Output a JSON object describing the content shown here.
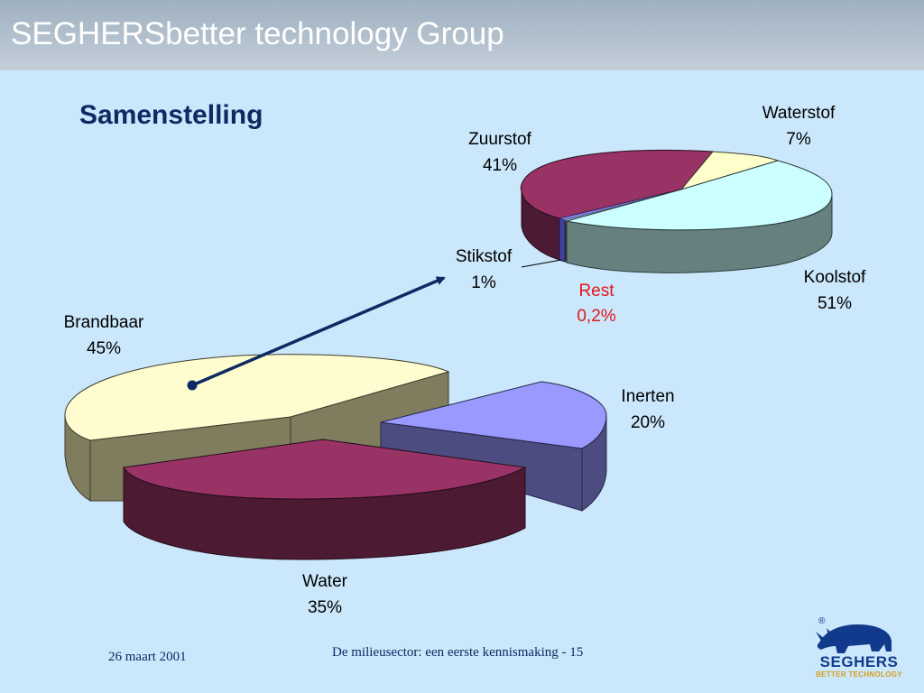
{
  "header": {
    "title": "SEGHERSbetter technology Group"
  },
  "slide": {
    "title": "Samenstelling"
  },
  "footer": {
    "date": "26 maart 2001",
    "text": "De milieusector: een eerste kennismaking -  15"
  },
  "logo": {
    "name": "SEGHERS",
    "tagline": "BETTER TECHNOLOGY",
    "registered": "®"
  },
  "colors": {
    "brandbaar": "#fffdd0",
    "water": "#993366",
    "inerten": "#9999ff",
    "koolstof": "#ccffff",
    "zuurstof": "#993366",
    "waterstof": "#ffffcc",
    "stikstof": "#8080e0",
    "arrow": "#0d2a63",
    "rest_label": "#e01818"
  },
  "chart_data": [
    {
      "type": "pie",
      "title": "",
      "slices": [
        {
          "name": "Brandbaar",
          "value": 45,
          "label": "45%"
        },
        {
          "name": "Water",
          "value": 35,
          "label": "35%"
        },
        {
          "name": "Inerten",
          "value": 20,
          "label": "20%"
        }
      ]
    },
    {
      "type": "pie",
      "title": "",
      "slices": [
        {
          "name": "Waterstof",
          "value": 7,
          "label": "7%"
        },
        {
          "name": "Koolstof",
          "value": 51,
          "label": "51%"
        },
        {
          "name": "Rest",
          "value": 0.2,
          "label": "0,2%"
        },
        {
          "name": "Stikstof",
          "value": 1,
          "label": "1%"
        },
        {
          "name": "Zuurstof",
          "value": 41,
          "label": "41%"
        }
      ]
    }
  ]
}
